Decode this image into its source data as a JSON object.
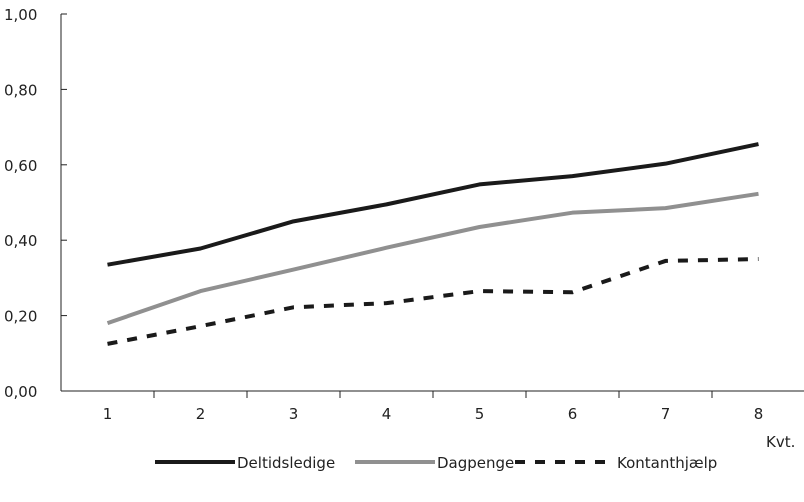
{
  "chart_data": {
    "type": "line",
    "x": [
      1,
      2,
      3,
      4,
      5,
      6,
      7,
      8
    ],
    "xticks": [
      "1",
      "2",
      "3",
      "4",
      "5",
      "6",
      "7",
      "8"
    ],
    "xlabel": "Kvt.",
    "ylim": [
      0,
      1
    ],
    "yticks": [
      "0,00",
      "0,20",
      "0,40",
      "0,60",
      "0,80",
      "1,00"
    ],
    "grid": false,
    "legend_position": "bottom",
    "series": [
      {
        "name": "Deltidsledige",
        "color": "#1a1a1a",
        "style": "solid",
        "values": [
          0.335,
          0.378,
          0.45,
          0.495,
          0.548,
          0.57,
          0.603,
          0.655
        ]
      },
      {
        "name": "Dagpenge",
        "color": "#909090",
        "style": "solid",
        "values": [
          0.18,
          0.265,
          0.322,
          0.38,
          0.435,
          0.473,
          0.485,
          0.523
        ]
      },
      {
        "name": "Kontanthjælp",
        "color": "#1a1a1a",
        "style": "dashed",
        "values": [
          0.125,
          0.172,
          0.222,
          0.233,
          0.265,
          0.262,
          0.345,
          0.35
        ]
      }
    ]
  }
}
